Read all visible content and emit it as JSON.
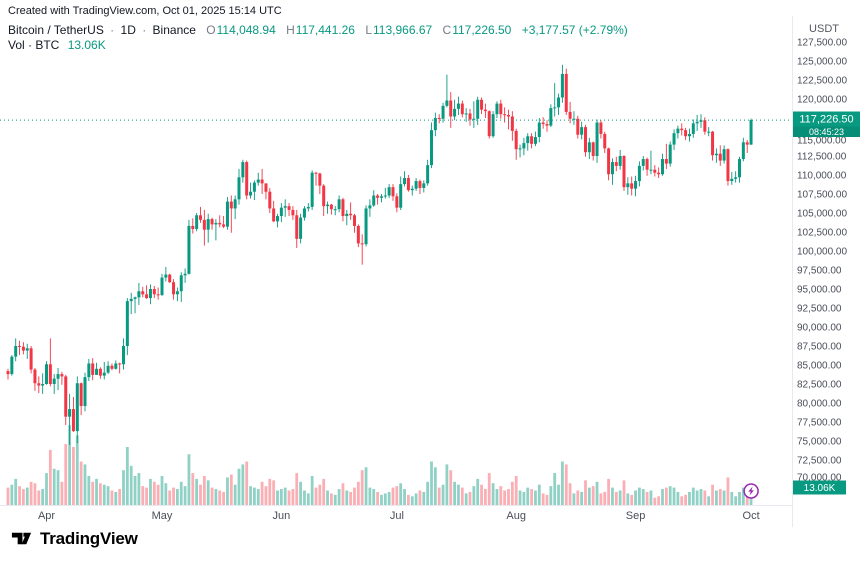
{
  "attribution": "Created with TradingView.com, Oct 01, 2025 15:14 UTC",
  "legend": {
    "symbol_title": "Bitcoin / TetherUS",
    "separator": "·",
    "interval": "1D",
    "exchange": "Binance",
    "ohlc": {
      "o_label": "O",
      "o": "114,048.94",
      "h_label": "H",
      "h": "117,441.26",
      "l_label": "L",
      "l": "113,966.67",
      "c_label": "C",
      "c": "117,226.50",
      "change": "+3,177.57 (+2.79%)"
    },
    "volume_label": "Vol · BTC",
    "volume_value": "13.06K"
  },
  "price_axis": {
    "currency": "USDT",
    "labels": [
      "127,500.00",
      "125,000.00",
      "122,500.00",
      "120,000.00",
      "117,500.00",
      "115,000.00",
      "112,500.00",
      "110,000.00",
      "107,500.00",
      "105,000.00",
      "102,500.00",
      "100,000.00",
      "97,500.00",
      "95,000.00",
      "92,500.00",
      "90,000.00",
      "87,500.00",
      "85,000.00",
      "82,500.00",
      "80,000.00",
      "77,500.00",
      "75,000.00",
      "72,500.00",
      "70,000.00"
    ],
    "last_price_label": "117,226.50",
    "countdown": "08:45:23",
    "volume_badge": "13.06K"
  },
  "time_axis": {
    "labels": [
      {
        "label": "Apr",
        "index": 10
      },
      {
        "label": "May",
        "index": 40
      },
      {
        "label": "Jun",
        "index": 71
      },
      {
        "label": "Jul",
        "index": 101
      },
      {
        "label": "Aug",
        "index": 132
      },
      {
        "label": "Sep",
        "index": 163
      },
      {
        "label": "Oct",
        "index": 193
      }
    ]
  },
  "footer": {
    "brand": "TradingView"
  },
  "colors": {
    "up": "#089981",
    "down": "#f23645",
    "volume_up": "rgba(8,153,129,0.45)",
    "volume_down": "rgba(242,54,69,0.40)",
    "countdown_bg": "#078e77",
    "axis_text": "#4a4e58",
    "marker": "#9c27b0"
  },
  "chart_data": {
    "type": "candlestick",
    "title": "Bitcoin / TetherUS, 1D, Binance",
    "y_axis": {
      "min": 70000,
      "max": 127500,
      "step": 2500,
      "unit": "USDT"
    },
    "x_axis_months": [
      "Apr",
      "May",
      "Jun",
      "Jul",
      "Aug",
      "Sep",
      "Oct"
    ],
    "format": "candles_hlc_k = [high, low, close] in thousands of USDT; open of each candle = previous close; first_open_k is the open of candle 0 (late March); volumes_k in thousands of BTC",
    "first_open_k": 84.2,
    "candles_hlc_k": [
      [
        84.5,
        83.1,
        83.8
      ],
      [
        86.3,
        83.6,
        86.1
      ],
      [
        88.5,
        85.5,
        87.5
      ],
      [
        88.2,
        86.3,
        87.4
      ],
      [
        88.0,
        86.4,
        86.9
      ],
      [
        87.8,
        85.8,
        87.2
      ],
      [
        87.5,
        83.9,
        84.4
      ],
      [
        84.6,
        81.6,
        82.6
      ],
      [
        83.5,
        81.3,
        82.3
      ],
      [
        83.9,
        81.2,
        82.5
      ],
      [
        85.5,
        82.4,
        85.1
      ],
      [
        88.5,
        82.2,
        82.5
      ],
      [
        83.8,
        81.2,
        83.2
      ],
      [
        84.6,
        81.7,
        83.8
      ],
      [
        84.1,
        82.4,
        83.5
      ],
      [
        83.7,
        77.1,
        78.2
      ],
      [
        81.2,
        74.5,
        79.2
      ],
      [
        80.8,
        76.2,
        76.3
      ],
      [
        83.5,
        74.7,
        82.6
      ],
      [
        82.7,
        78.4,
        79.6
      ],
      [
        84.0,
        78.9,
        83.4
      ],
      [
        85.8,
        82.9,
        85.2
      ],
      [
        85.9,
        83.0,
        83.7
      ],
      [
        85.3,
        83.7,
        84.5
      ],
      [
        84.7,
        83.2,
        83.6
      ],
      [
        85.4,
        83.1,
        84.0
      ],
      [
        85.5,
        83.8,
        84.9
      ],
      [
        85.2,
        84.3,
        84.5
      ],
      [
        85.6,
        84.4,
        85.2
      ],
      [
        85.3,
        83.9,
        85.1
      ],
      [
        88.5,
        84.4,
        87.5
      ],
      [
        93.8,
        86.3,
        93.4
      ],
      [
        94.5,
        91.7,
        93.7
      ],
      [
        94.0,
        91.8,
        93.9
      ],
      [
        95.8,
        92.9,
        94.7
      ],
      [
        95.3,
        93.9,
        94.3
      ],
      [
        95.5,
        93.7,
        93.8
      ],
      [
        95.6,
        93.0,
        95.0
      ],
      [
        95.4,
        93.8,
        94.3
      ],
      [
        95.2,
        93.6,
        94.2
      ],
      [
        97.0,
        94.1,
        96.5
      ],
      [
        97.9,
        96.0,
        96.9
      ],
      [
        97.0,
        95.8,
        95.9
      ],
      [
        96.3,
        93.6,
        94.3
      ],
      [
        95.2,
        93.4,
        94.7
      ],
      [
        97.2,
        93.3,
        96.8
      ],
      [
        97.7,
        95.8,
        97.0
      ],
      [
        104.1,
        96.9,
        103.3
      ],
      [
        104.3,
        102.3,
        102.9
      ],
      [
        105.0,
        102.6,
        104.7
      ],
      [
        105.8,
        103.7,
        104.1
      ],
      [
        105.4,
        100.7,
        102.8
      ],
      [
        104.9,
        101.1,
        104.2
      ],
      [
        104.4,
        102.8,
        103.5
      ],
      [
        104.2,
        101.4,
        103.7
      ],
      [
        104.7,
        103.1,
        103.5
      ],
      [
        104.6,
        103.0,
        103.2
      ],
      [
        107.1,
        102.8,
        106.5
      ],
      [
        107.3,
        102.4,
        105.6
      ],
      [
        107.3,
        104.2,
        106.8
      ],
      [
        110.8,
        106.1,
        109.7
      ],
      [
        112.0,
        109.0,
        111.7
      ],
      [
        111.9,
        106.8,
        107.3
      ],
      [
        109.0,
        106.9,
        107.8
      ],
      [
        109.3,
        106.7,
        109.0
      ],
      [
        110.3,
        108.6,
        109.4
      ],
      [
        110.8,
        107.5,
        108.9
      ],
      [
        108.9,
        106.8,
        107.8
      ],
      [
        108.3,
        105.0,
        105.6
      ],
      [
        106.6,
        103.8,
        103.9
      ],
      [
        104.9,
        103.1,
        104.6
      ],
      [
        106.3,
        103.8,
        105.7
      ],
      [
        106.8,
        104.5,
        105.9
      ],
      [
        106.3,
        104.6,
        105.4
      ],
      [
        105.9,
        104.1,
        104.7
      ],
      [
        105.4,
        100.4,
        101.6
      ],
      [
        104.9,
        101.0,
        104.4
      ],
      [
        105.9,
        104.0,
        105.6
      ],
      [
        106.3,
        105.2,
        105.8
      ],
      [
        110.6,
        105.4,
        110.3
      ],
      [
        110.4,
        108.6,
        110.2
      ],
      [
        110.3,
        107.5,
        108.6
      ],
      [
        108.8,
        104.6,
        105.9
      ],
      [
        106.5,
        104.9,
        106.1
      ],
      [
        106.2,
        104.8,
        105.5
      ],
      [
        105.9,
        104.7,
        105.5
      ],
      [
        107.3,
        105.1,
        106.8
      ],
      [
        107.0,
        103.9,
        104.6
      ],
      [
        105.4,
        103.4,
        104.9
      ],
      [
        106.4,
        104.1,
        104.7
      ],
      [
        104.9,
        102.4,
        103.3
      ],
      [
        103.5,
        100.5,
        101.0
      ],
      [
        102.2,
        98.2,
        100.9
      ],
      [
        106.0,
        100.6,
        105.6
      ],
      [
        106.8,
        104.5,
        106.0
      ],
      [
        108.0,
        105.8,
        107.3
      ],
      [
        107.5,
        106.1,
        107.0
      ],
      [
        107.5,
        106.4,
        107.2
      ],
      [
        108.3,
        106.9,
        107.3
      ],
      [
        108.8,
        107.0,
        108.4
      ],
      [
        108.8,
        106.6,
        107.2
      ],
      [
        107.6,
        105.1,
        105.7
      ],
      [
        109.8,
        105.4,
        108.8
      ],
      [
        110.5,
        108.5,
        109.6
      ],
      [
        110.0,
        107.8,
        108.0
      ],
      [
        108.6,
        107.3,
        108.2
      ],
      [
        109.6,
        107.9,
        109.2
      ],
      [
        109.4,
        107.5,
        108.3
      ],
      [
        109.3,
        107.7,
        108.9
      ],
      [
        112.0,
        108.6,
        111.3
      ],
      [
        116.9,
        110.9,
        115.9
      ],
      [
        118.2,
        115.1,
        117.5
      ],
      [
        118.0,
        116.8,
        117.4
      ],
      [
        119.5,
        116.9,
        119.1
      ],
      [
        123.2,
        118.9,
        119.8
      ],
      [
        120.9,
        116.2,
        117.7
      ],
      [
        119.9,
        117.2,
        118.7
      ],
      [
        120.3,
        117.9,
        119.4
      ],
      [
        119.8,
        117.6,
        118.0
      ],
      [
        118.8,
        117.0,
        118.1
      ],
      [
        118.7,
        116.5,
        117.3
      ],
      [
        119.7,
        116.2,
        117.4
      ],
      [
        120.3,
        116.6,
        119.9
      ],
      [
        120.2,
        118.0,
        118.6
      ],
      [
        119.4,
        117.5,
        118.4
      ],
      [
        118.5,
        114.8,
        115.1
      ],
      [
        118.4,
        114.9,
        118.0
      ],
      [
        119.7,
        117.5,
        119.4
      ],
      [
        119.9,
        117.4,
        118.0
      ],
      [
        118.9,
        116.9,
        117.9
      ],
      [
        118.6,
        116.0,
        117.7
      ],
      [
        118.4,
        114.5,
        115.8
      ],
      [
        116.1,
        112.0,
        113.4
      ],
      [
        114.0,
        112.3,
        113.5
      ],
      [
        114.9,
        112.6,
        114.2
      ],
      [
        115.5,
        113.2,
        115.1
      ],
      [
        115.5,
        113.5,
        114.1
      ],
      [
        115.7,
        113.8,
        115.0
      ],
      [
        117.5,
        114.3,
        116.9
      ],
      [
        117.6,
        116.1,
        116.7
      ],
      [
        117.2,
        115.7,
        116.5
      ],
      [
        119.3,
        116.3,
        118.8
      ],
      [
        122.1,
        117.7,
        118.9
      ],
      [
        120.7,
        117.9,
        120.2
      ],
      [
        124.5,
        119.5,
        123.3
      ],
      [
        124.0,
        117.9,
        118.3
      ],
      [
        119.6,
        116.8,
        117.4
      ],
      [
        118.4,
        116.6,
        117.4
      ],
      [
        117.8,
        114.8,
        115.3
      ],
      [
        117.0,
        114.7,
        116.3
      ],
      [
        116.6,
        112.4,
        113.0
      ],
      [
        114.9,
        112.1,
        114.3
      ],
      [
        114.4,
        111.9,
        112.5
      ],
      [
        117.3,
        111.6,
        116.9
      ],
      [
        117.2,
        114.8,
        115.4
      ],
      [
        115.7,
        112.9,
        113.5
      ],
      [
        113.6,
        109.3,
        110.1
      ],
      [
        112.2,
        108.7,
        111.7
      ],
      [
        112.4,
        110.5,
        111.2
      ],
      [
        113.3,
        110.7,
        112.5
      ],
      [
        112.6,
        107.9,
        108.4
      ],
      [
        109.7,
        107.4,
        108.9
      ],
      [
        109.8,
        107.3,
        108.2
      ],
      [
        109.9,
        107.2,
        109.2
      ],
      [
        111.8,
        108.5,
        111.2
      ],
      [
        112.5,
        110.6,
        112.1
      ],
      [
        112.3,
        109.9,
        110.7
      ],
      [
        113.2,
        110.1,
        110.7
      ],
      [
        111.3,
        109.8,
        110.3
      ],
      [
        111.0,
        109.6,
        110.1
      ],
      [
        112.8,
        109.9,
        112.1
      ],
      [
        114.1,
        110.8,
        111.5
      ],
      [
        114.4,
        111.1,
        114.0
      ],
      [
        116.0,
        113.3,
        115.5
      ],
      [
        116.5,
        114.8,
        116.1
      ],
      [
        116.8,
        115.2,
        115.9
      ],
      [
        116.2,
        114.6,
        115.1
      ],
      [
        116.1,
        114.4,
        115.4
      ],
      [
        117.3,
        114.9,
        116.8
      ],
      [
        117.9,
        115.8,
        117.0
      ],
      [
        118.0,
        116.2,
        117.2
      ],
      [
        117.6,
        115.3,
        115.7
      ],
      [
        116.3,
        115.1,
        115.7
      ],
      [
        115.8,
        111.9,
        112.6
      ],
      [
        113.5,
        111.6,
        112.8
      ],
      [
        113.9,
        111.2,
        111.9
      ],
      [
        113.9,
        111.5,
        113.4
      ],
      [
        113.5,
        108.6,
        109.2
      ],
      [
        110.4,
        108.7,
        109.5
      ],
      [
        110.5,
        109.0,
        109.7
      ],
      [
        112.4,
        109.0,
        112.1
      ],
      [
        114.9,
        111.8,
        114.3
      ],
      [
        114.6,
        112.9,
        114.0
      ],
      [
        117.44,
        113.97,
        117.23
      ]
    ],
    "volumes_k": [
      12,
      14,
      18,
      13,
      11,
      12,
      16,
      15,
      10,
      11,
      22,
      38,
      25,
      24,
      16,
      42,
      55,
      40,
      48,
      30,
      28,
      20,
      16,
      18,
      15,
      14,
      13,
      10,
      9,
      11,
      24,
      40,
      27,
      20,
      22,
      13,
      12,
      18,
      16,
      14,
      20,
      15,
      10,
      12,
      11,
      16,
      13,
      35,
      22,
      18,
      14,
      20,
      17,
      12,
      11,
      10,
      9,
      19,
      21,
      14,
      25,
      28,
      30,
      13,
      12,
      11,
      16,
      13,
      18,
      17,
      10,
      11,
      12,
      10,
      11,
      22,
      16,
      10,
      8,
      20,
      12,
      14,
      18,
      10,
      8,
      7,
      11,
      15,
      10,
      9,
      12,
      16,
      24,
      26,
      12,
      11,
      9,
      7,
      8,
      9,
      12,
      13,
      15,
      11,
      7,
      6,
      8,
      10,
      9,
      16,
      30,
      26,
      12,
      14,
      28,
      24,
      16,
      14,
      12,
      8,
      9,
      13,
      18,
      14,
      11,
      22,
      15,
      11,
      13,
      10,
      11,
      16,
      20,
      10,
      9,
      12,
      11,
      10,
      14,
      8,
      7,
      13,
      22,
      14,
      30,
      28,
      15,
      8,
      10,
      9,
      17,
      12,
      13,
      16,
      8,
      9,
      18,
      12,
      9,
      10,
      17,
      8,
      7,
      10,
      12,
      11,
      9,
      10,
      5,
      6,
      11,
      12,
      13,
      12,
      9,
      6,
      7,
      9,
      12,
      10,
      11,
      10,
      6,
      14,
      10,
      11,
      10,
      19,
      9,
      6,
      9,
      12,
      10,
      13.06
    ],
    "last": {
      "open": 114048.94,
      "high": 117441.26,
      "low": 113966.67,
      "close": 117226.5,
      "change": 3177.57,
      "change_pct": 2.79
    },
    "last_volume_k": 13.06
  }
}
